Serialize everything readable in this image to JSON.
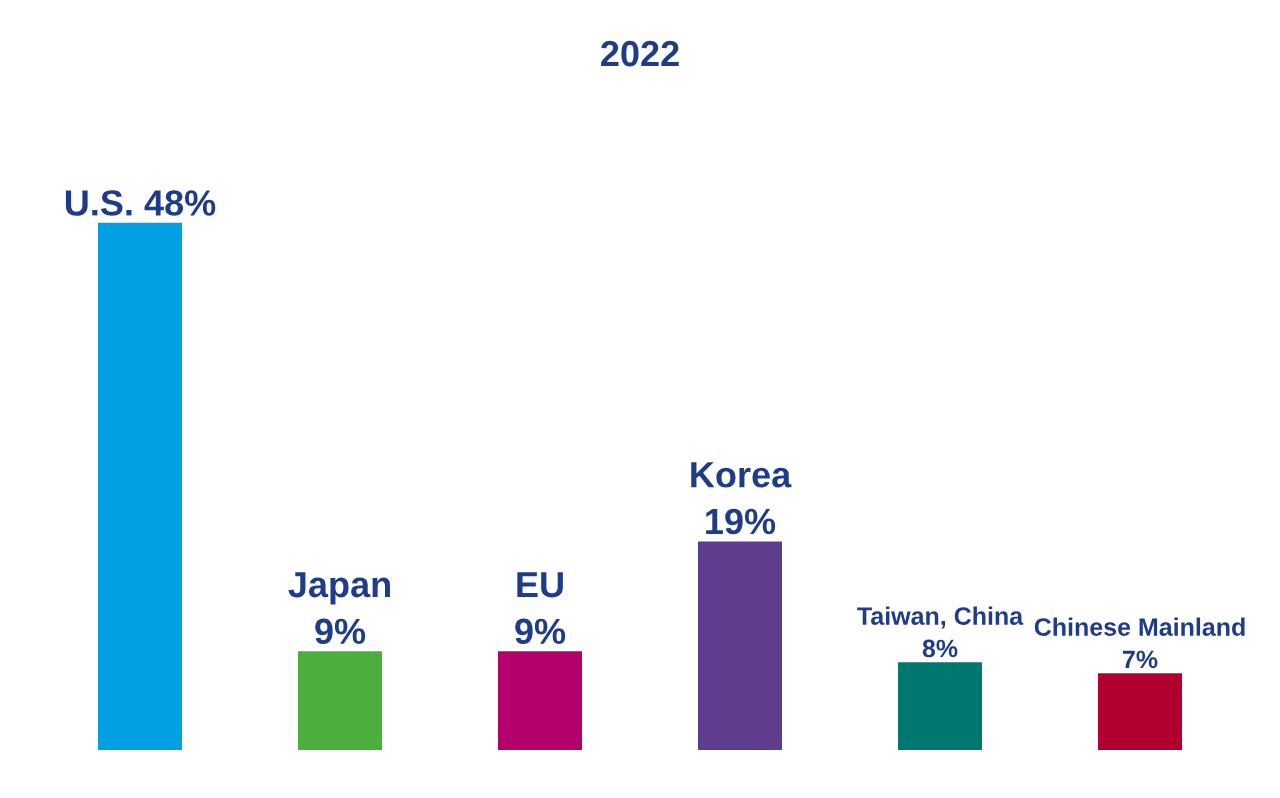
{
  "chart_data": {
    "type": "bar",
    "title": "2022",
    "categories": [
      null,
      null,
      null,
      null,
      null,
      null
    ],
    "values": [
      48,
      9,
      9,
      19,
      8,
      7
    ],
    "colors": [
      "#00a0e2",
      "#4cae3c",
      "#b3006b",
      "#5e3d8f",
      "#00786f",
      "#b1002f"
    ],
    "value_labels": [
      "U.S. 48%",
      "Japan\n9%",
      "EU\n9%",
      "Korea\n19%",
      "Taiwan, China\n8%",
      "Chinese Mainland\n7%"
    ],
    "grid": false,
    "legend": false
  }
}
